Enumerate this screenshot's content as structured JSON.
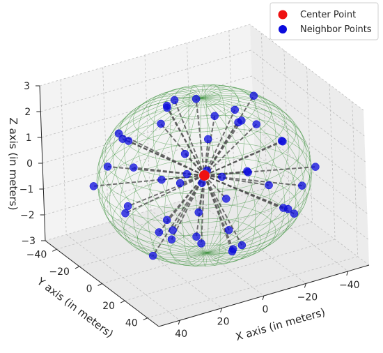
{
  "chart_data": {
    "type": "scatter",
    "view": "3d",
    "xlabel": "X axis (in meters)",
    "ylabel": "Y axis (in meters)",
    "zlabel": "Z axis (in meters)",
    "x_ticks": [
      "−40",
      "−20",
      "0",
      "20",
      "40"
    ],
    "y_ticks": [
      "−40",
      "−20",
      "0",
      "20",
      "40"
    ],
    "z_ticks": [
      "−3",
      "−2",
      "−1",
      "0",
      "1",
      "2",
      "3"
    ],
    "xlim": [
      -50,
      50
    ],
    "ylim": [
      -50,
      50
    ],
    "zlim": [
      -3,
      3
    ],
    "grid": true,
    "legend_position": "top-right",
    "legend": [
      "Center Point",
      "Neighbor Points"
    ],
    "colors": {
      "center": "#ee1111",
      "neighbors": "#0b0bdd",
      "wireframe": "#2e8b2e",
      "links": "#4d4d4d"
    },
    "series": [
      {
        "name": "Center Point",
        "points": [
          [
            0,
            0,
            0
          ]
        ]
      },
      {
        "name": "Neighbor Points",
        "points": [
          [
            0,
            -5,
            2.8
          ],
          [
            -8,
            20,
            2.6
          ],
          [
            6,
            -20,
            2.1
          ],
          [
            -10,
            -8,
            1.8
          ],
          [
            14,
            10,
            1.5
          ],
          [
            -22,
            -10,
            1.2
          ],
          [
            28,
            15,
            1.0
          ],
          [
            -5,
            30,
            1.0
          ],
          [
            4,
            -30,
            1.1
          ],
          [
            0,
            -5,
            -2.8
          ],
          [
            -6,
            12,
            -2.6
          ],
          [
            8,
            -20,
            -2.2
          ],
          [
            10,
            10,
            -1.8
          ],
          [
            -14,
            -8,
            -1.5
          ],
          [
            22,
            12,
            -1.2
          ],
          [
            -28,
            -15,
            -1.0
          ],
          [
            5,
            30,
            -1.0
          ],
          [
            -3,
            -28,
            -1.3
          ],
          [
            -40,
            -5,
            0.2
          ],
          [
            42,
            8,
            -0.2
          ],
          [
            -12,
            35,
            0.5
          ],
          [
            15,
            -35,
            -0.5
          ],
          [
            -38,
            15,
            -0.8
          ],
          [
            36,
            -18,
            0.6
          ],
          [
            -24,
            25,
            1.6
          ],
          [
            22,
            -28,
            -1.6
          ],
          [
            -30,
            -28,
            0.9
          ],
          [
            30,
            26,
            -0.9
          ],
          [
            -18,
            40,
            -0.4
          ],
          [
            16,
            -42,
            0.4
          ],
          [
            -34,
            5,
            -1.9
          ],
          [
            32,
            -6,
            1.9
          ],
          [
            -8,
            -40,
            1.4
          ],
          [
            9,
            40,
            -1.4
          ],
          [
            -42,
            20,
            0.0
          ],
          [
            44,
            -16,
            0.1
          ],
          [
            -16,
            18,
            2.2
          ],
          [
            14,
            -16,
            -2.4
          ],
          [
            -26,
            30,
            -1.1
          ],
          [
            24,
            -30,
            1.2
          ],
          [
            -2,
            12,
            0.3
          ],
          [
            2,
            -12,
            -0.3
          ],
          [
            -20,
            -34,
            -0.2
          ],
          [
            21,
            34,
            0.2
          ],
          [
            -6,
            -14,
            -0.9
          ],
          [
            6,
            14,
            0.8
          ],
          [
            -36,
            -22,
            1.5
          ],
          [
            37,
            22,
            -1.5
          ],
          [
            -4,
            24,
            -2.0
          ],
          [
            4,
            -24,
            2.0
          ]
        ]
      }
    ]
  }
}
